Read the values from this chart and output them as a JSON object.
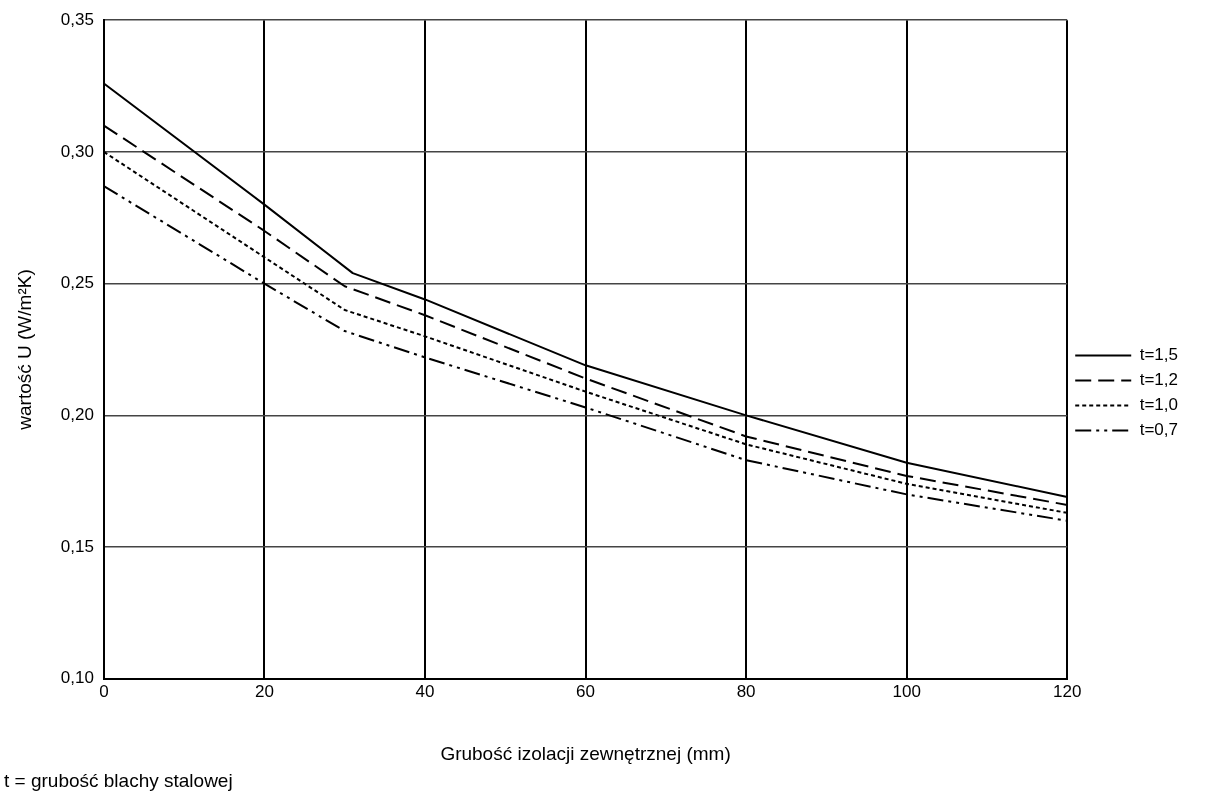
{
  "chart_data": {
    "type": "line",
    "xlabel": "Grubość izolacji zewnętrznej (mm)",
    "ylabel": "wartość U (W/m²K)",
    "xlim": [
      0,
      120
    ],
    "xticks": [
      0,
      20,
      40,
      60,
      80,
      100,
      120
    ],
    "ylim": [
      0.1,
      0.35
    ],
    "yticks": [
      {
        "value": 0.1,
        "label": "0,10"
      },
      {
        "value": 0.15,
        "label": "0,15"
      },
      {
        "value": 0.2,
        "label": "0,20"
      },
      {
        "value": 0.25,
        "label": "0,25"
      },
      {
        "value": 0.3,
        "label": "0,30"
      },
      {
        "value": 0.35,
        "label": "0,35"
      }
    ],
    "grid": true,
    "legend": "right",
    "marker": "none",
    "series": [
      {
        "name": "t=1,5",
        "color": "#000000",
        "line_style": "solid",
        "x": [
          0,
          20,
          31,
          40,
          60,
          80,
          100,
          120
        ],
        "values": [
          0.326,
          0.28,
          0.254,
          0.244,
          0.219,
          0.2,
          0.182,
          0.169
        ]
      },
      {
        "name": "t=1,2",
        "color": "#000000",
        "line_style": "dashed",
        "x": [
          0,
          20,
          30,
          40,
          60,
          80,
          100,
          120
        ],
        "values": [
          0.31,
          0.27,
          0.249,
          0.238,
          0.214,
          0.192,
          0.177,
          0.166
        ]
      },
      {
        "name": "t=1,0",
        "color": "#000000",
        "line_style": "dotted",
        "x": [
          0,
          20,
          30,
          40,
          60,
          80,
          100,
          120
        ],
        "values": [
          0.3,
          0.26,
          0.24,
          0.23,
          0.209,
          0.189,
          0.174,
          0.163
        ]
      },
      {
        "name": "t=0,7",
        "color": "#000000",
        "line_style": "dashdot",
        "x": [
          0,
          20,
          30,
          40,
          60,
          80,
          100,
          120
        ],
        "values": [
          0.287,
          0.25,
          0.232,
          0.222,
          0.203,
          0.183,
          0.17,
          0.16
        ]
      }
    ],
    "annotations": [
      "t = grubość blachy stalowej"
    ]
  }
}
